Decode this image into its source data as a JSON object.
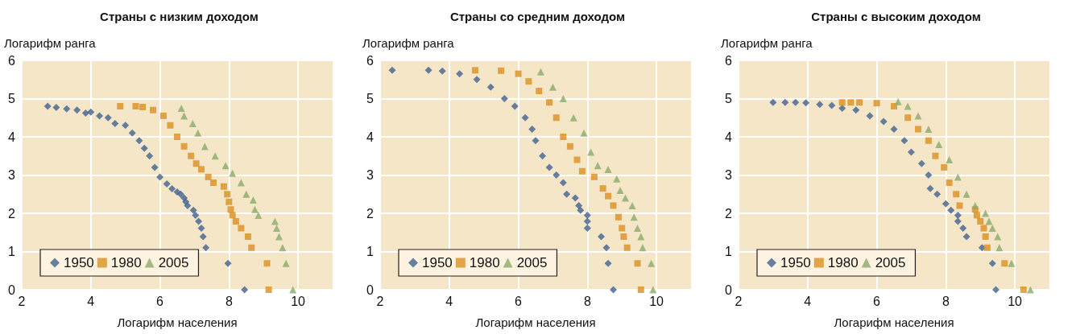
{
  "chart_data": [
    {
      "type": "scatter",
      "title": "Страны с низким доходом",
      "xlabel": "Логарифм населения",
      "ylabel": "Логарифм ранга",
      "xlim": [
        2,
        11
      ],
      "xticks": [
        2,
        4,
        6,
        8,
        10
      ],
      "ylim": [
        0,
        6
      ],
      "yticks": [
        0,
        1,
        2,
        3,
        4,
        5,
        6
      ],
      "grid": true,
      "legend": "bottom left",
      "series": [
        {
          "name": "1950",
          "color": "#41628e",
          "marker": "diamond",
          "x": [
            8.45,
            7.97,
            7.33,
            7.25,
            7.2,
            7.12,
            7.03,
            6.97,
            6.8,
            6.75,
            6.7,
            6.6,
            6.5,
            6.35,
            6.2,
            6.0,
            5.85,
            5.7,
            5.55,
            5.4,
            5.2,
            5.0,
            4.7,
            4.5,
            4.25,
            4.0,
            3.85,
            3.6,
            3.3,
            3.0,
            2.75
          ],
          "values": [
            0,
            0.69,
            1.1,
            1.39,
            1.61,
            1.79,
            1.95,
            2.08,
            2.2,
            2.3,
            2.4,
            2.5,
            2.56,
            2.64,
            2.77,
            2.95,
            3.2,
            3.5,
            3.7,
            3.9,
            4.1,
            4.3,
            4.35,
            4.5,
            4.55,
            4.65,
            4.62,
            4.7,
            4.73,
            4.77,
            4.8
          ]
        },
        {
          "name": "1980",
          "color": "#d99020",
          "marker": "square",
          "x": [
            9.15,
            9.1,
            8.65,
            8.55,
            8.35,
            8.2,
            8.1,
            8.05,
            8.0,
            7.95,
            7.85,
            7.55,
            7.4,
            7.2,
            7.05,
            6.9,
            6.7,
            6.5,
            6.3,
            6.1,
            5.8,
            5.5,
            5.3,
            4.85
          ],
          "values": [
            0,
            0.69,
            1.1,
            1.39,
            1.61,
            1.79,
            1.95,
            2.1,
            2.3,
            2.5,
            2.7,
            2.8,
            2.95,
            3.15,
            3.3,
            3.5,
            3.75,
            4.0,
            4.3,
            4.55,
            4.7,
            4.78,
            4.8,
            4.8
          ]
        },
        {
          "name": "2005",
          "color": "#8aab6a",
          "marker": "triangle",
          "x": [
            9.85,
            9.65,
            9.55,
            9.45,
            9.38,
            9.33,
            8.85,
            8.75,
            8.7,
            8.5,
            8.35,
            8.1,
            7.9,
            7.6,
            7.3,
            7.1,
            6.95,
            6.7,
            6.62
          ],
          "values": [
            0,
            0.69,
            1.1,
            1.39,
            1.61,
            1.79,
            1.95,
            2.1,
            2.35,
            2.5,
            2.8,
            3.05,
            3.25,
            3.5,
            3.75,
            4.1,
            4.35,
            4.55,
            4.75
          ]
        }
      ]
    },
    {
      "type": "scatter",
      "title": "Страны со средним доходом",
      "xlabel": "Логарифм населения",
      "ylabel": "Логарифм ранга",
      "xlim": [
        2,
        11
      ],
      "xticks": [
        2,
        4,
        6,
        8,
        10
      ],
      "ylim": [
        0,
        6
      ],
      "yticks": [
        0,
        1,
        2,
        3,
        4,
        5,
        6
      ],
      "grid": true,
      "legend": "bottom left",
      "series": [
        {
          "name": "1950",
          "color": "#41628e",
          "marker": "diamond",
          "x": [
            8.75,
            8.6,
            8.55,
            8.4,
            8.0,
            8.0,
            8.0,
            7.8,
            7.75,
            7.65,
            7.4,
            7.3,
            7.1,
            6.9,
            6.7,
            6.5,
            6.4,
            6.2,
            5.9,
            5.6,
            5.2,
            4.8,
            4.3,
            3.8,
            3.4,
            2.35
          ],
          "values": [
            0,
            0.69,
            1.1,
            1.39,
            1.61,
            1.79,
            1.95,
            2.08,
            2.2,
            2.4,
            2.5,
            2.8,
            3.0,
            3.2,
            3.5,
            3.9,
            4.2,
            4.5,
            4.8,
            5.0,
            5.3,
            5.5,
            5.65,
            5.72,
            5.74,
            5.74
          ]
        },
        {
          "name": "1980",
          "color": "#d99020",
          "marker": "square",
          "x": [
            9.55,
            9.45,
            9.15,
            9.05,
            9.0,
            8.9,
            8.75,
            8.6,
            8.45,
            8.2,
            7.85,
            7.7,
            7.5,
            7.3,
            7.1,
            6.9,
            6.6,
            6.3,
            6.0,
            5.5,
            4.75
          ],
          "values": [
            0,
            0.69,
            1.1,
            1.39,
            1.61,
            1.9,
            2.2,
            2.45,
            2.65,
            2.95,
            3.1,
            3.4,
            3.75,
            4.0,
            4.5,
            4.9,
            5.2,
            5.45,
            5.65,
            5.73,
            5.74
          ]
        },
        {
          "name": "2005",
          "color": "#8aab6a",
          "marker": "triangle",
          "x": [
            9.9,
            9.85,
            9.6,
            9.55,
            9.45,
            9.35,
            9.3,
            9.1,
            8.95,
            8.85,
            8.6,
            8.3,
            8.1,
            7.9,
            7.6,
            7.3,
            7.0,
            6.65
          ],
          "values": [
            0,
            0.69,
            1.1,
            1.39,
            1.61,
            1.9,
            2.2,
            2.4,
            2.6,
            2.9,
            3.15,
            3.25,
            3.6,
            4.1,
            4.5,
            5.0,
            5.3,
            5.7
          ]
        }
      ]
    },
    {
      "type": "scatter",
      "title": "Страны с высоким доходом",
      "xlabel": "Логарифм населения",
      "ylabel": "Логарифм ранга",
      "xlim": [
        2,
        11
      ],
      "xticks": [
        2,
        4,
        6,
        8,
        10
      ],
      "ylim": [
        0,
        6
      ],
      "yticks": [
        0,
        1,
        2,
        3,
        4,
        5,
        6
      ],
      "grid": true,
      "legend": "bottom left",
      "series": [
        {
          "name": "1950",
          "color": "#41628e",
          "marker": "diamond",
          "x": [
            9.45,
            9.35,
            9.05,
            8.6,
            8.5,
            8.35,
            8.35,
            8.15,
            8.0,
            7.75,
            7.55,
            7.5,
            7.3,
            7.0,
            6.8,
            6.5,
            6.2,
            5.8,
            5.4,
            5.0,
            4.7,
            4.35,
            3.95,
            3.65,
            3.35,
            3.0
          ],
          "values": [
            0,
            0.69,
            1.1,
            1.39,
            1.61,
            1.79,
            1.95,
            2.08,
            2.25,
            2.5,
            2.65,
            3.0,
            3.3,
            3.6,
            3.9,
            4.2,
            4.4,
            4.55,
            4.7,
            4.75,
            4.82,
            4.85,
            4.89,
            4.9,
            4.9,
            4.9
          ]
        },
        {
          "name": "1980",
          "color": "#d99020",
          "marker": "square",
          "x": [
            10.25,
            9.7,
            9.2,
            9.15,
            9.1,
            9.0,
            8.9,
            8.85,
            8.4,
            8.3,
            8.1,
            7.95,
            7.7,
            7.5,
            7.2,
            6.9,
            6.5,
            6.0,
            5.5,
            5.25,
            5.0
          ],
          "values": [
            0,
            0.69,
            1.1,
            1.39,
            1.61,
            1.79,
            1.95,
            2.1,
            2.2,
            2.5,
            2.8,
            3.2,
            3.5,
            3.9,
            4.2,
            4.5,
            4.8,
            4.88,
            4.9,
            4.9,
            4.9
          ]
        },
        {
          "name": "2005",
          "color": "#8aab6a",
          "marker": "triangle",
          "x": [
            10.45,
            9.9,
            9.55,
            9.5,
            9.35,
            9.25,
            9.15,
            8.85,
            8.6,
            8.35,
            8.1,
            7.8,
            7.5,
            7.2,
            6.9,
            6.62
          ],
          "values": [
            0,
            0.69,
            1.1,
            1.39,
            1.61,
            1.79,
            2.0,
            2.2,
            2.5,
            2.95,
            3.4,
            3.8,
            4.2,
            4.55,
            4.8,
            4.92
          ]
        }
      ]
    }
  ]
}
